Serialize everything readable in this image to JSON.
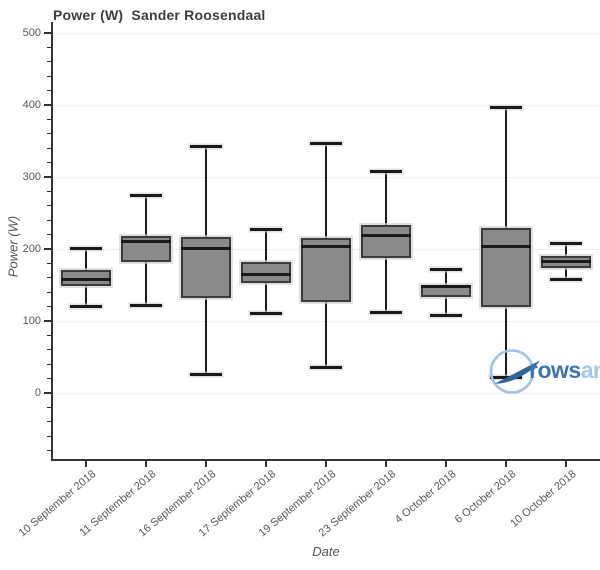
{
  "title": "Power (W)  Sander Roosendaal",
  "y_axis": {
    "title": "Power (W)",
    "tick_labels": [
      "0",
      "100",
      "200",
      "300",
      "400",
      "500"
    ]
  },
  "x_axis": {
    "title": "Date"
  },
  "logo": {
    "name": "rowsandall-logo",
    "text_dark": "rows",
    "text_light": "an"
  },
  "colors": {
    "box_fill": "#8a8a8a",
    "box_border": "#3b3b3b",
    "median": "#1a1a1a",
    "whisker": "#1a1a1a",
    "grid": "#ececec",
    "axis": "#333333",
    "tick_label": "#555555",
    "title": "#3d3d3d",
    "logo_dark": "#3a76b5",
    "logo_light": "#a5c8e8",
    "logo_circle": "#9dc3e6"
  },
  "chart_data": {
    "type": "box",
    "title": "Power (W)  Sander Roosendaal",
    "xlabel": "Date",
    "ylabel": "Power (W)",
    "ylim": [
      -92,
      515
    ],
    "grid": "horizontal major gridlines every 100",
    "y_major_ticks": [
      0,
      100,
      200,
      300,
      400,
      500
    ],
    "y_minor_step": 20,
    "legend": "none",
    "categories": [
      "10 September 2018",
      "11 September 2018",
      "16 September 2018",
      "17 September 2018",
      "19 September 2018",
      "23 September 2018",
      "4 October 2018",
      "6 October 2018",
      "10 October 2018"
    ],
    "series": [
      {
        "name": "Power (W)",
        "boxes": [
          {
            "category": "10 September 2018",
            "min": 120,
            "q1": 149,
            "median": 158,
            "q3": 171,
            "max": 201
          },
          {
            "category": "11 September 2018",
            "min": 122,
            "q1": 182,
            "median": 210,
            "q3": 218,
            "max": 275
          },
          {
            "category": "16 September 2018",
            "min": 26,
            "q1": 132,
            "median": 201,
            "q3": 216,
            "max": 343
          },
          {
            "category": "17 September 2018",
            "min": 110,
            "q1": 153,
            "median": 164,
            "q3": 182,
            "max": 227
          },
          {
            "category": "19 September 2018",
            "min": 35,
            "q1": 126,
            "median": 203,
            "q3": 215,
            "max": 347
          },
          {
            "category": "23 September 2018",
            "min": 112,
            "q1": 187,
            "median": 219,
            "q3": 233,
            "max": 307
          },
          {
            "category": "4 October 2018",
            "min": 108,
            "q1": 133,
            "median": 148,
            "q3": 150,
            "max": 172
          },
          {
            "category": "6 October 2018",
            "min": 21,
            "q1": 119,
            "median": 203,
            "q3": 229,
            "max": 397
          },
          {
            "category": "10 October 2018",
            "min": 158,
            "q1": 174,
            "median": 182,
            "q3": 190,
            "max": 207
          }
        ]
      }
    ]
  }
}
